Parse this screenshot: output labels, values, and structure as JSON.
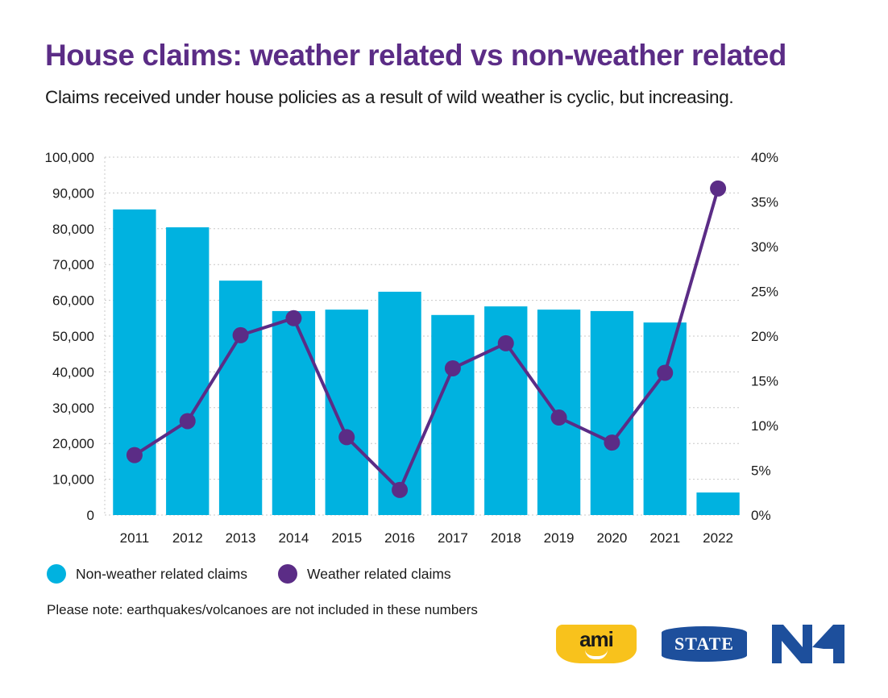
{
  "header": {
    "title": "House claims: weather related vs non-weather related",
    "subtitle": "Claims received under house policies as a result of wild weather is cyclic, but increasing."
  },
  "chart_data": {
    "type": "bar",
    "title": "House claims: weather related vs non-weather related",
    "subtitle": "Claims received under house policies as a result of wild weather is cyclic, but increasing.",
    "categories": [
      "2011",
      "2012",
      "2013",
      "2014",
      "2015",
      "2016",
      "2017",
      "2018",
      "2019",
      "2020",
      "2021",
      "2022"
    ],
    "series": [
      {
        "name": "Non-weather related claims",
        "type": "bar",
        "axis": "left",
        "color": "#00b2e0",
        "values": [
          85400,
          80400,
          65500,
          57000,
          57400,
          62400,
          55900,
          58300,
          57400,
          57000,
          53800,
          6300
        ]
      },
      {
        "name": "Weather related claims",
        "type": "line",
        "axis": "right",
        "unit": "%",
        "color": "#5b2c86",
        "values": [
          6.7,
          10.5,
          20.1,
          22.0,
          8.7,
          2.8,
          16.4,
          19.2,
          10.9,
          8.1,
          15.9,
          36.5
        ]
      }
    ],
    "left_axis": {
      "ylim": [
        0,
        100000
      ],
      "ticks": [
        0,
        10000,
        20000,
        30000,
        40000,
        50000,
        60000,
        70000,
        80000,
        90000,
        100000
      ],
      "tick_labels": [
        "0",
        "10,000",
        "20,000",
        "30,000",
        "40,000",
        "50,000",
        "60,000",
        "70,000",
        "80,000",
        "90,000",
        "100,000"
      ]
    },
    "right_axis": {
      "ylim": [
        0,
        40
      ],
      "ticks": [
        0,
        5,
        10,
        15,
        20,
        25,
        30,
        35,
        40
      ],
      "tick_labels": [
        "0%",
        "5%",
        "10%",
        "15%",
        "20%",
        "25%",
        "30%",
        "35%",
        "40%"
      ]
    },
    "xlabel": "",
    "ylabel": "",
    "grid": true,
    "legend_position": "bottom-left"
  },
  "legend": {
    "items": [
      {
        "label": "Non-weather related claims",
        "color": "#00b2e0"
      },
      {
        "label": "Weather related claims",
        "color": "#5b2c86"
      }
    ]
  },
  "footer": {
    "note": "Please note: earthquakes/volcanoes are not included in these numbers",
    "logos": [
      {
        "name": "ami",
        "text": "ami",
        "color": "#f8c21c"
      },
      {
        "name": "state",
        "text": "STATE",
        "color": "#1d4f9c"
      },
      {
        "name": "nzi",
        "text": "NZI",
        "color": "#1d4f9c"
      }
    ]
  }
}
